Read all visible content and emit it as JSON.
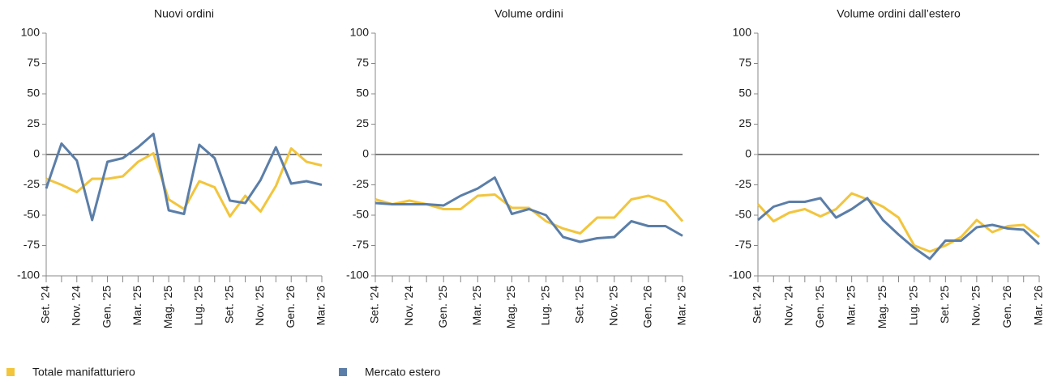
{
  "chart_data": [
    {
      "type": "line",
      "title": "Nuovi ordini",
      "categories": [
        "Set. '24",
        null,
        "Nov. '24",
        null,
        "Gen. '25",
        null,
        "Mar. '25",
        null,
        "Mag. '25",
        null,
        "Lug. '25",
        null,
        "Set. '25",
        null,
        "Nov. '25",
        null,
        "Gen. '26",
        null,
        "Mar. '26"
      ],
      "series": [
        {
          "values": [
            -20,
            -25,
            -31,
            -20,
            -20,
            -18,
            -6,
            1,
            -37,
            -45,
            -22,
            -27,
            -51,
            -34,
            -47,
            -26,
            5,
            -6,
            -9
          ]
        },
        {
          "values": [
            -28,
            9,
            -5,
            -54,
            -6,
            -3,
            6,
            17,
            -46,
            -49,
            8,
            -3,
            -38,
            -40,
            -21,
            6,
            -24,
            -22,
            -25
          ]
        }
      ],
      "ylim": [
        -100,
        100
      ],
      "yticks": [
        -100,
        -75,
        -50,
        -25,
        0,
        25,
        50,
        75,
        100
      ]
    },
    {
      "type": "line",
      "title": "Volume ordini",
      "categories": [
        "Set. '24",
        null,
        "Nov. '24",
        null,
        "Gen. '25",
        null,
        "Mar. '25",
        null,
        "Mag. '25",
        null,
        "Lug. '25",
        null,
        "Set. '25",
        null,
        "Nov. '25",
        null,
        "Gen. '26",
        null,
        "Mar. '26"
      ],
      "series": [
        {
          "values": [
            -37,
            -41,
            -38,
            -41,
            -45,
            -45,
            -34,
            -33,
            -44,
            -44,
            -55,
            -61,
            -65,
            -52,
            -52,
            -37,
            -34,
            -39,
            -55
          ]
        },
        {
          "values": [
            -40,
            -41,
            -41,
            -41,
            -42,
            -34,
            -28,
            -19,
            -49,
            -45,
            -50,
            -68,
            -72,
            -69,
            -68,
            -55,
            -59,
            -59,
            -67
          ]
        }
      ],
      "ylim": [
        -100,
        100
      ],
      "yticks": [
        -100,
        -75,
        -50,
        -25,
        0,
        25,
        50,
        75,
        100
      ]
    },
    {
      "type": "line",
      "title": "Volume ordini dall’estero",
      "categories": [
        "Set. '24",
        null,
        "Nov. '24",
        null,
        "Gen. '25",
        null,
        "Mar. '25",
        null,
        "Mag. '25",
        null,
        "Lug. '25",
        null,
        "Set. '25",
        null,
        "Nov. '25",
        null,
        "Gen. '26",
        null,
        "Mar. '26"
      ],
      "series": [
        {
          "values": [
            -41,
            -55,
            -48,
            -45,
            -51,
            -45,
            -32,
            -37,
            -43,
            -52,
            -75,
            -80,
            -75,
            -68,
            -54,
            -64,
            -59,
            -58,
            -68
          ]
        },
        {
          "values": [
            -54,
            -43,
            -39,
            -39,
            -36,
            -52,
            -45,
            -36,
            -54,
            -66,
            -77,
            -86,
            -71,
            -71,
            -60,
            -58,
            -61,
            -62,
            -74
          ]
        }
      ],
      "ylim": [
        -100,
        100
      ],
      "yticks": [
        -100,
        -75,
        -50,
        -25,
        0,
        25,
        50,
        75,
        100
      ]
    }
  ],
  "legend": [
    {
      "name": "Totale manifatturiero",
      "color": "#f2c53d"
    },
    {
      "name": "Mercato estero",
      "color": "#5b7ea8"
    }
  ]
}
